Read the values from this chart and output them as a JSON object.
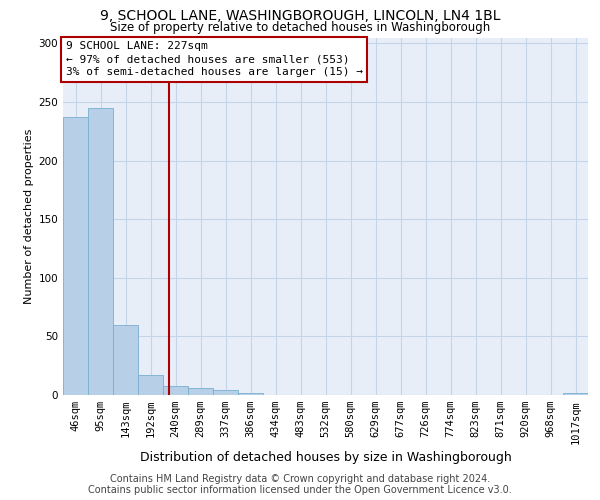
{
  "title1": "9, SCHOOL LANE, WASHINGBOROUGH, LINCOLN, LN4 1BL",
  "title2": "Size of property relative to detached houses in Washingborough",
  "xlabel": "Distribution of detached houses by size in Washingborough",
  "ylabel": "Number of detached properties",
  "categories": [
    "46sqm",
    "95sqm",
    "143sqm",
    "192sqm",
    "240sqm",
    "289sqm",
    "337sqm",
    "386sqm",
    "434sqm",
    "483sqm",
    "532sqm",
    "580sqm",
    "629sqm",
    "677sqm",
    "726sqm",
    "774sqm",
    "823sqm",
    "871sqm",
    "920sqm",
    "968sqm",
    "1017sqm"
  ],
  "values": [
    237,
    245,
    60,
    17,
    8,
    6,
    4,
    2,
    0,
    0,
    0,
    0,
    0,
    0,
    0,
    0,
    0,
    0,
    0,
    0,
    2
  ],
  "bar_color": "#b8cfe8",
  "bar_edge_color": "#7aaed0",
  "red_line_color": "#aa0000",
  "annotation_line1": "9 SCHOOL LANE: 227sqm",
  "annotation_line2": "← 97% of detached houses are smaller (553)",
  "annotation_line3": "3% of semi-detached houses are larger (15) →",
  "ylim": [
    0,
    305
  ],
  "yticks": [
    0,
    50,
    100,
    150,
    200,
    250,
    300
  ],
  "grid_color": "#c5d5e8",
  "bg_color": "#e8eef8",
  "footer1": "Contains HM Land Registry data © Crown copyright and database right 2024.",
  "footer2": "Contains public sector information licensed under the Open Government Licence v3.0.",
  "title1_fontsize": 10,
  "title2_fontsize": 8.5,
  "xlabel_fontsize": 9,
  "ylabel_fontsize": 8,
  "tick_fontsize": 7.5,
  "annotation_fontsize": 8,
  "footer_fontsize": 7
}
